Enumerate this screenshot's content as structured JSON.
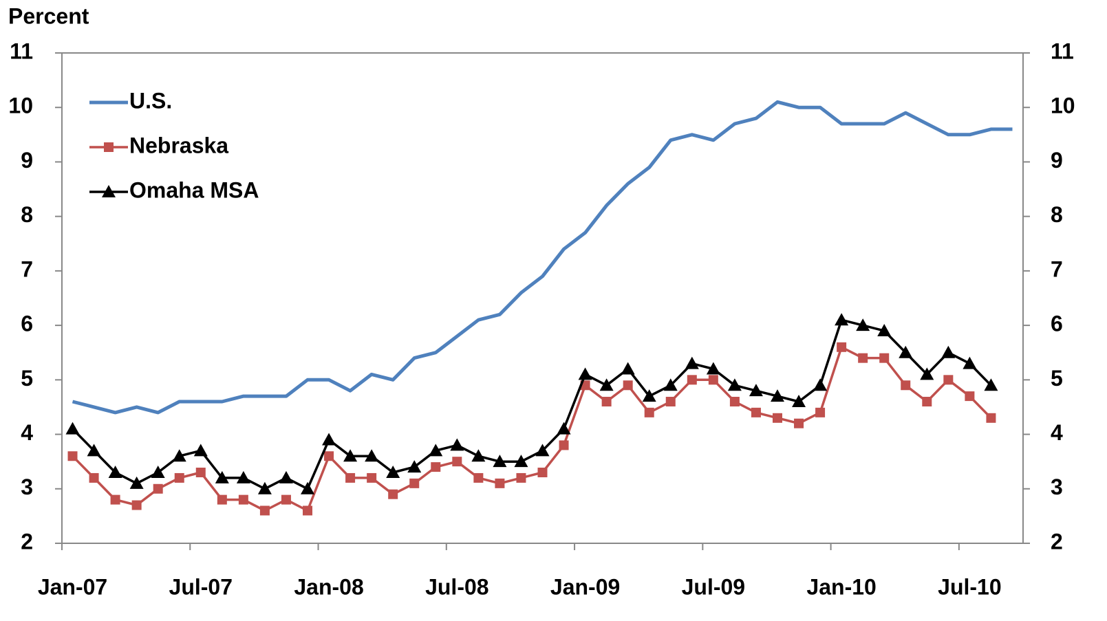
{
  "chart_data": {
    "type": "line",
    "y_label": "Percent",
    "categories": [
      "Jan-07",
      null,
      null,
      null,
      null,
      null,
      "Jul-07",
      null,
      null,
      null,
      null,
      null,
      "Jan-08",
      null,
      null,
      null,
      null,
      null,
      "Jul-08",
      null,
      null,
      null,
      null,
      null,
      "Jan-09",
      null,
      null,
      null,
      null,
      null,
      "Jul-09",
      null,
      null,
      null,
      null,
      null,
      "Jan-10",
      null,
      null,
      null,
      null,
      null,
      "Jul-10",
      null,
      null
    ],
    "series": [
      {
        "name": "U.S.",
        "color": "#4f81bd",
        "marker": "none",
        "values": [
          4.6,
          4.5,
          4.4,
          4.5,
          4.4,
          4.6,
          4.6,
          4.6,
          4.7,
          4.7,
          4.7,
          5.0,
          5.0,
          4.8,
          5.1,
          5.0,
          5.4,
          5.5,
          5.8,
          6.1,
          6.2,
          6.6,
          6.9,
          7.4,
          7.7,
          8.2,
          8.6,
          8.9,
          9.4,
          9.5,
          9.4,
          9.7,
          9.8,
          10.1,
          10.0,
          10.0,
          9.7,
          9.7,
          9.7,
          9.9,
          9.7,
          9.5,
          9.5,
          9.6,
          9.6
        ]
      },
      {
        "name": "Nebraska",
        "color": "#c0504d",
        "marker": "square",
        "values": [
          3.6,
          3.2,
          2.8,
          2.7,
          3.0,
          3.2,
          3.3,
          2.8,
          2.8,
          2.6,
          2.8,
          2.6,
          3.6,
          3.2,
          3.2,
          2.9,
          3.1,
          3.4,
          3.5,
          3.2,
          3.1,
          3.2,
          3.3,
          3.8,
          4.9,
          4.6,
          4.9,
          4.4,
          4.6,
          5.0,
          5.0,
          4.6,
          4.4,
          4.3,
          4.2,
          4.4,
          5.6,
          5.4,
          5.4,
          4.9,
          4.6,
          5.0,
          4.7,
          4.3,
          null
        ]
      },
      {
        "name": "Omaha MSA",
        "color": "#000000",
        "marker": "triangle",
        "values": [
          4.1,
          3.7,
          3.3,
          3.1,
          3.3,
          3.6,
          3.7,
          3.2,
          3.2,
          3.0,
          3.2,
          3.0,
          3.9,
          3.6,
          3.6,
          3.3,
          3.4,
          3.7,
          3.8,
          3.6,
          3.5,
          3.5,
          3.7,
          4.1,
          5.1,
          4.9,
          5.2,
          4.7,
          4.9,
          5.3,
          5.2,
          4.9,
          4.8,
          4.7,
          4.6,
          4.9,
          6.1,
          6.0,
          5.9,
          5.5,
          5.1,
          5.5,
          5.3,
          4.9,
          null
        ]
      }
    ],
    "ylim": [
      2,
      11
    ],
    "yticks": [
      2,
      3,
      4,
      5,
      6,
      7,
      8,
      9,
      10,
      11
    ],
    "y2lim": [
      2,
      11
    ],
    "y2ticks": [
      2,
      3,
      4,
      5,
      6,
      7,
      8,
      9,
      10,
      11
    ],
    "grid": false,
    "legend": "upper left"
  }
}
